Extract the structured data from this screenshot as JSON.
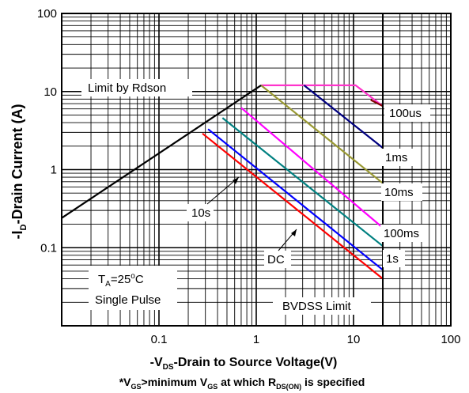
{
  "chart_data": {
    "type": "line",
    "scale": {
      "x": "log",
      "y": "log"
    },
    "xlim": [
      0.01,
      100
    ],
    "ylim": [
      0.01,
      100
    ],
    "grid": true,
    "x_ticks": [
      "0.1",
      "1",
      "10",
      "100"
    ],
    "y_ticks": [
      "0.1",
      "1",
      "10",
      "100"
    ],
    "xlabel": {
      "pre": "-V",
      "sub": "DS",
      "post": "-Drain to Source Voltage(V)"
    },
    "ylabel": {
      "pre": "-I",
      "sub": "D",
      "post": "-Drain Current (A)"
    },
    "footnote": {
      "p1": "*V",
      "s1": "GS",
      "p2": ">minimum V",
      "s2": "GS",
      "p3": " at which R",
      "s3": "DS(ON)",
      "p4": " is specified"
    },
    "annotations": {
      "limit_rdson": "Limit by Rdson",
      "bvdss": "BVDSS Limit",
      "ta_pre": "T",
      "ta_sub": "A",
      "ta_post": "=25",
      "ta_deg": "o",
      "ta_unit": "C",
      "pulse": "Single Pulse"
    },
    "series": [
      {
        "name": "100us",
        "color": "#ff33cc",
        "points": [
          [
            1.12,
            12
          ],
          [
            10.5,
            12
          ],
          [
            20,
            6.5
          ]
        ]
      },
      {
        "name": "1ms",
        "color": "#000080",
        "points": [
          [
            3.1,
            12
          ],
          [
            20,
            1.9
          ]
        ]
      },
      {
        "name": "10ms",
        "color": "#999933",
        "points": [
          [
            1.12,
            12
          ],
          [
            20,
            0.67
          ]
        ]
      },
      {
        "name": "100ms",
        "color": "#ff00ff",
        "points": [
          [
            0.7,
            6.2
          ],
          [
            20,
            0.18
          ]
        ]
      },
      {
        "name": "1s",
        "color": "#008080",
        "points": [
          [
            0.45,
            4.6
          ],
          [
            20,
            0.105
          ]
        ]
      },
      {
        "name": "10s",
        "color": "#0000ff",
        "points": [
          [
            0.32,
            3.3
          ],
          [
            20,
            0.052
          ]
        ]
      },
      {
        "name": "DC",
        "color": "#ff0000",
        "points": [
          [
            0.28,
            2.9
          ],
          [
            20,
            0.04
          ]
        ]
      },
      {
        "name": "Limit by Rdson",
        "color": "#000000",
        "points": [
          [
            0.01,
            0.24
          ],
          [
            1.12,
            12
          ]
        ]
      }
    ],
    "hidden_edge": {
      "color": "#800000",
      "points": [
        [
          15,
          7.8
        ],
        [
          20,
          6.5
        ]
      ]
    },
    "legend_labels": [
      "100us",
      "1ms",
      "10ms",
      "100ms",
      "1s",
      "10s",
      "DC"
    ]
  }
}
